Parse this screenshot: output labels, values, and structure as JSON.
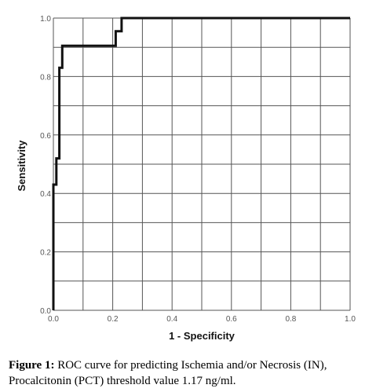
{
  "chart_data": {
    "type": "line",
    "xlabel": "1 - Specificity",
    "ylabel": "Sensitivity",
    "xlim": [
      0,
      1
    ],
    "ylim": [
      0,
      1
    ],
    "x_ticks": [
      "0.0",
      "0.2",
      "0.4",
      "0.6",
      "0.8",
      "1.0"
    ],
    "y_ticks": [
      "0.0",
      "0.2",
      "0.4",
      "0.6",
      "0.8",
      "1.0"
    ],
    "grid": true,
    "gridline_step": 0.1,
    "series": [
      {
        "x": [
          0.0,
          0.0,
          0.01,
          0.01,
          0.02,
          0.02,
          0.03,
          0.03,
          0.21,
          0.21,
          0.23,
          0.23,
          1.0
        ],
        "y": [
          0.0,
          0.43,
          0.43,
          0.52,
          0.52,
          0.83,
          0.83,
          0.905,
          0.905,
          0.955,
          0.955,
          1.0,
          1.0
        ]
      }
    ],
    "colors": {
      "curve": "#111111",
      "grid": "#555555",
      "background": "#ffffff"
    }
  },
  "caption": {
    "label": "Figure 1:",
    "text": " ROC curve for predicting Ischemia and/or Necrosis (IN), Procalcitonin (PCT) threshold value 1.17 ng/ml."
  }
}
